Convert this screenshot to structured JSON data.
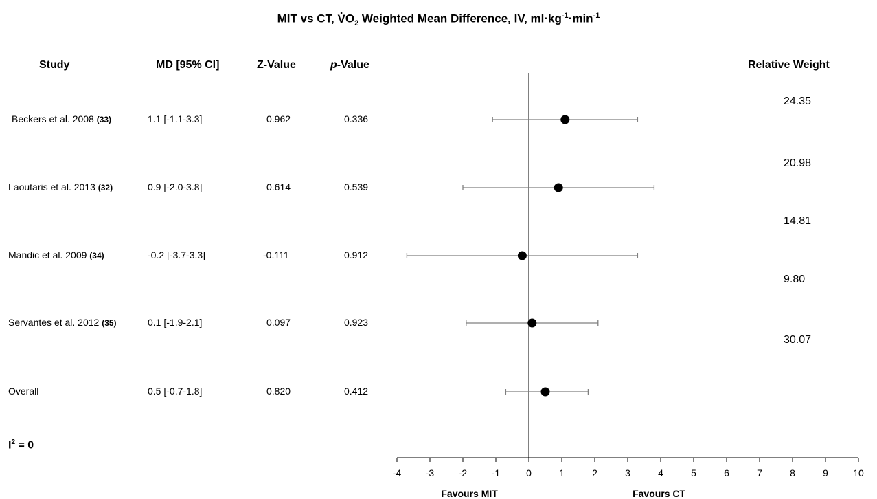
{
  "title": {
    "pre": "MIT vs CT, ",
    "v": "V",
    "o": "O",
    "o_sub": "2",
    "post": " Weighted Mean Difference, IV, ml·kg",
    "unit_sup1": "-1",
    "unit_mid": "·min",
    "unit_sup2": "-1"
  },
  "headers": {
    "study": "Study",
    "md": "MD [95% CI]",
    "z": "Z-Value",
    "p_italic": "p",
    "p_rest": "-Value",
    "weight": "Relative Weight"
  },
  "rows": [
    {
      "study": "Beckers et al. 2008",
      "ref": "(33)",
      "md_text": "1.1 [-1.1-3.3]",
      "z": "0.962",
      "p": "0.336"
    },
    {
      "study": "Laoutaris et al. 2013",
      "ref": "(32)",
      "md_text": "0.9 [-2.0-3.8]",
      "z": "0.614",
      "p": "0.539"
    },
    {
      "study": "Mandic et al. 2009",
      "ref": "(34)",
      "md_text": "-0.2 [-3.7-3.3]",
      "z": "-0.111",
      "p": "0.912"
    },
    {
      "study": "Servantes et al. 2012",
      "ref": "(35)",
      "md_text": "0.1 [-1.9-2.1]",
      "z": "0.097",
      "p": "0.923"
    },
    {
      "study": "Overall",
      "ref": "",
      "md_text": "0.5 [-0.7-1.8]",
      "z": "0.820",
      "p": "0.412"
    }
  ],
  "weights": [
    "24.35",
    "20.98",
    "14.81",
    "9.80",
    "30.07"
  ],
  "heterogeneity": {
    "i": "I",
    "sup": "2",
    "rest": " = 0"
  },
  "chart_data": {
    "type": "scatter",
    "subtype": "forest-plot",
    "xlim": [
      -4,
      10
    ],
    "xticks": [
      "-4",
      "-3",
      "-2",
      "-1",
      "0",
      "1",
      "2",
      "3",
      "4",
      "5",
      "6",
      "7",
      "8",
      "9",
      "10"
    ],
    "reference_line": 0,
    "x_annotations": [
      "Favours MIT",
      "Favours CT"
    ],
    "points": [
      {
        "mean": 1.1,
        "lo": -1.1,
        "hi": 3.3
      },
      {
        "mean": 0.9,
        "lo": -2.0,
        "hi": 3.8
      },
      {
        "mean": -0.2,
        "lo": -3.7,
        "hi": 3.3
      },
      {
        "mean": 0.1,
        "lo": -1.9,
        "hi": 2.1
      },
      {
        "mean": 0.5,
        "lo": -0.7,
        "hi": 1.8
      }
    ],
    "colors": {
      "marker": "#000000",
      "whisker": "#7f7f7f",
      "axis": "#000000"
    }
  }
}
